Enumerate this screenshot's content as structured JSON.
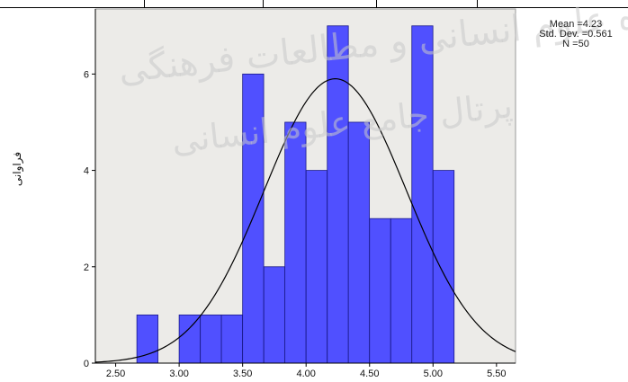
{
  "chart_data": {
    "type": "bar",
    "ylabel": "فراوانی",
    "xlabel": "",
    "xlim": [
      2.34,
      5.65
    ],
    "ylim": [
      0,
      7.35
    ],
    "bin_width": 0.166,
    "bins": [
      {
        "start": 2.667,
        "count": 1
      },
      {
        "start": 3.0,
        "count": 1
      },
      {
        "start": 3.167,
        "count": 1
      },
      {
        "start": 3.333,
        "count": 1
      },
      {
        "start": 3.5,
        "count": 6
      },
      {
        "start": 3.667,
        "count": 2
      },
      {
        "start": 3.833,
        "count": 5
      },
      {
        "start": 4.0,
        "count": 4
      },
      {
        "start": 4.167,
        "count": 7
      },
      {
        "start": 4.333,
        "count": 5
      },
      {
        "start": 4.5,
        "count": 3
      },
      {
        "start": 4.667,
        "count": 3
      },
      {
        "start": 4.833,
        "count": 7
      },
      {
        "start": 5.0,
        "count": 4
      }
    ],
    "x_ticks": [
      {
        "value": 2.5,
        "label": "2.50"
      },
      {
        "value": 3.0,
        "label": "3.00"
      },
      {
        "value": 3.5,
        "label": "3.50"
      },
      {
        "value": 4.0,
        "label": "4.00"
      },
      {
        "value": 4.5,
        "label": "4.50"
      },
      {
        "value": 5.0,
        "label": "5.00"
      },
      {
        "value": 5.5,
        "label": "5.50"
      }
    ],
    "y_ticks": [
      {
        "value": 0,
        "label": "0"
      },
      {
        "value": 2,
        "label": "2"
      },
      {
        "value": 4,
        "label": "4"
      },
      {
        "value": 6,
        "label": "6"
      }
    ],
    "normal_curve": {
      "mean": 4.23,
      "std": 0.561,
      "n": 50
    },
    "colors": {
      "bar": "#5050ff",
      "bar_edge": "#1a1a8a",
      "plot_bg": "#ecebe8",
      "curve": "#000000"
    },
    "grid": false
  },
  "stats": {
    "mean": "Mean =4.23",
    "std": "Std. Dev. =0.561",
    "n": "N =50"
  },
  "watermark": {
    "line1": "پژوهشگاه علوم انسانی و مطالعات فرهنگی",
    "line2": "پرتال جامع علوم انسانی"
  }
}
